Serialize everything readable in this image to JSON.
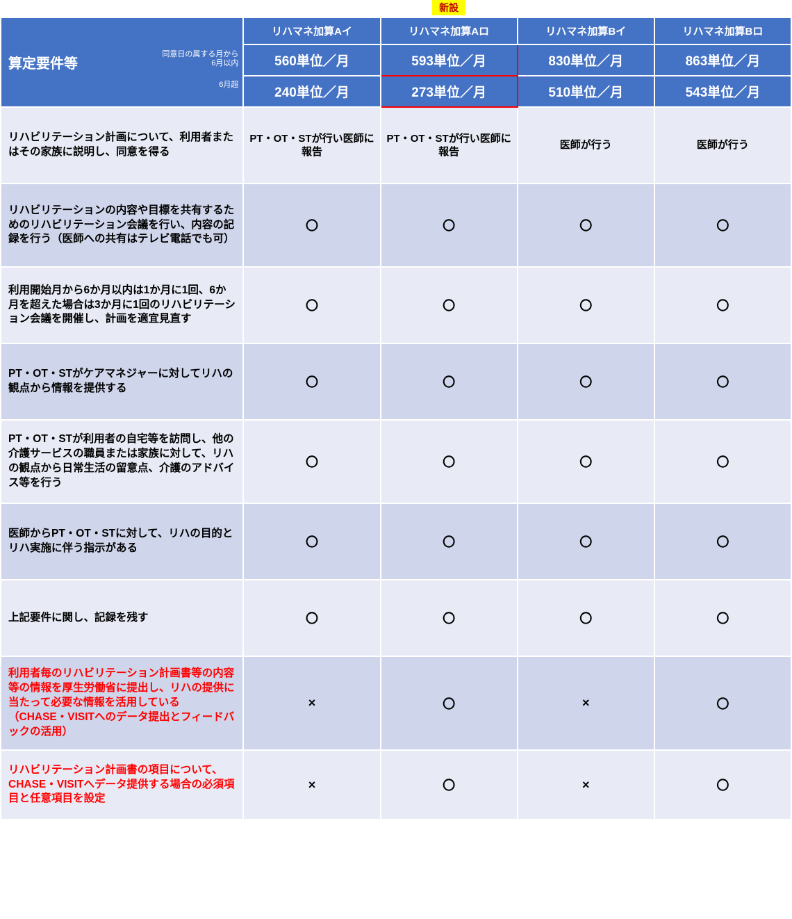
{
  "badge": "新設",
  "header": {
    "left_title": "算定要件等",
    "left_sub1": "同意日の属する月から\n6月以内",
    "left_sub2": "6月超",
    "columns": [
      "リハマネ加算Aイ",
      "リハマネ加算Aロ",
      "リハマネ加算Bイ",
      "リハマネ加算Bロ"
    ],
    "units_row1": [
      "560単位／月",
      "593単位／月",
      "830単位／月",
      "863単位／月"
    ],
    "units_row2": [
      "240単位／月",
      "273単位／月",
      "510単位／月",
      "543単位／月"
    ]
  },
  "rows": [
    {
      "req": "リハビリテーション計画について、利用者またはその家族に説明し、同意を得る",
      "red": false,
      "vals": [
        "PT・OT・STが行い医師に報告",
        "PT・OT・STが行い医師に報告",
        "医師が行う",
        "医師が行う"
      ],
      "textmode": true
    },
    {
      "req": "リハビリテーションの内容や目標を共有するためのリハビリテーション会議を行い、内容の記録を行う（医師への共有はテレビ電話でも可）",
      "red": false,
      "vals": [
        "〇",
        "〇",
        "〇",
        "〇"
      ],
      "textmode": false
    },
    {
      "req": "利用開始月から6か月以内は1か月に1回、6か月を超えた場合は3か月に1回のリハビリテーション会議を開催し、計画を適宜見直す",
      "red": false,
      "vals": [
        "〇",
        "〇",
        "〇",
        "〇"
      ],
      "textmode": false
    },
    {
      "req": "PT・OT・STがケアマネジャーに対してリハの観点から情報を提供する",
      "red": false,
      "vals": [
        "〇",
        "〇",
        "〇",
        "〇"
      ],
      "textmode": false
    },
    {
      "req": "PT・OT・STが利用者の自宅等を訪問し、他の介護サービスの職員または家族に対して、リハの観点から日常生活の留意点、介護のアドバイス等を行う",
      "red": false,
      "vals": [
        "〇",
        "〇",
        "〇",
        "〇"
      ],
      "textmode": false
    },
    {
      "req": "医師からPT・OT・STに対して、リハの目的とリハ実施に伴う指示がある",
      "red": false,
      "vals": [
        "〇",
        "〇",
        "〇",
        "〇"
      ],
      "textmode": false
    },
    {
      "req": "上記要件に関し、記録を残す",
      "red": false,
      "vals": [
        "〇",
        "〇",
        "〇",
        "〇"
      ],
      "textmode": false
    },
    {
      "req": "利用者毎のリハビリテーション計画書等の内容等の情報を厚生労働省に提出し、リハの提供に当たって必要な情報を活用している（CHASE・VISITへのデータ提出とフィードバックの活用）",
      "red": true,
      "vals": [
        "×",
        "〇",
        "×",
        "〇"
      ],
      "textmode": false
    },
    {
      "req": "リハビリテーション計画書の項目について、CHASE・VISITへデータ提供する場合の必須項目と任意項目を設定",
      "red": true,
      "vals": [
        "×",
        "〇",
        "×",
        "〇"
      ],
      "textmode": false
    }
  ],
  "colors": {
    "header_bg": "#4472c4",
    "row_light": "#e8ebf5",
    "row_dark": "#cfd5ea",
    "badge_bg": "#ffff00",
    "badge_fg": "#c00000",
    "highlight_border": "#ff0000"
  }
}
